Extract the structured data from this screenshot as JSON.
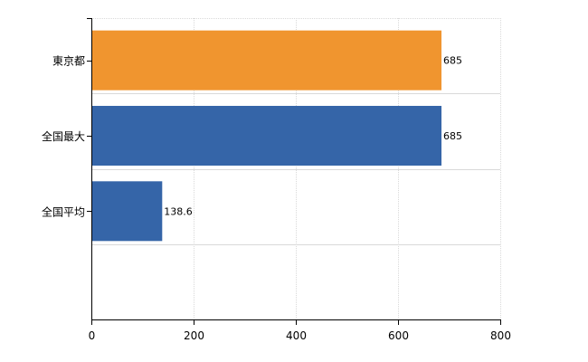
{
  "chart_data": {
    "type": "bar",
    "orientation": "horizontal",
    "title": "",
    "xlabel": "",
    "ylabel": "",
    "categories": [
      "東京都",
      "全国最大",
      "全国平均"
    ],
    "values": [
      685,
      685,
      138.6
    ],
    "value_labels": [
      "685",
      "685",
      "138.6"
    ],
    "bar_colors": [
      "#f0952f",
      "#3565a8",
      "#3565a8"
    ],
    "xlim": [
      0,
      800
    ],
    "xticks": [
      0,
      200,
      400,
      600,
      800
    ],
    "xtick_labels": [
      "0",
      "200",
      "400",
      "600",
      "800"
    ],
    "grid": true,
    "legend": "none"
  }
}
